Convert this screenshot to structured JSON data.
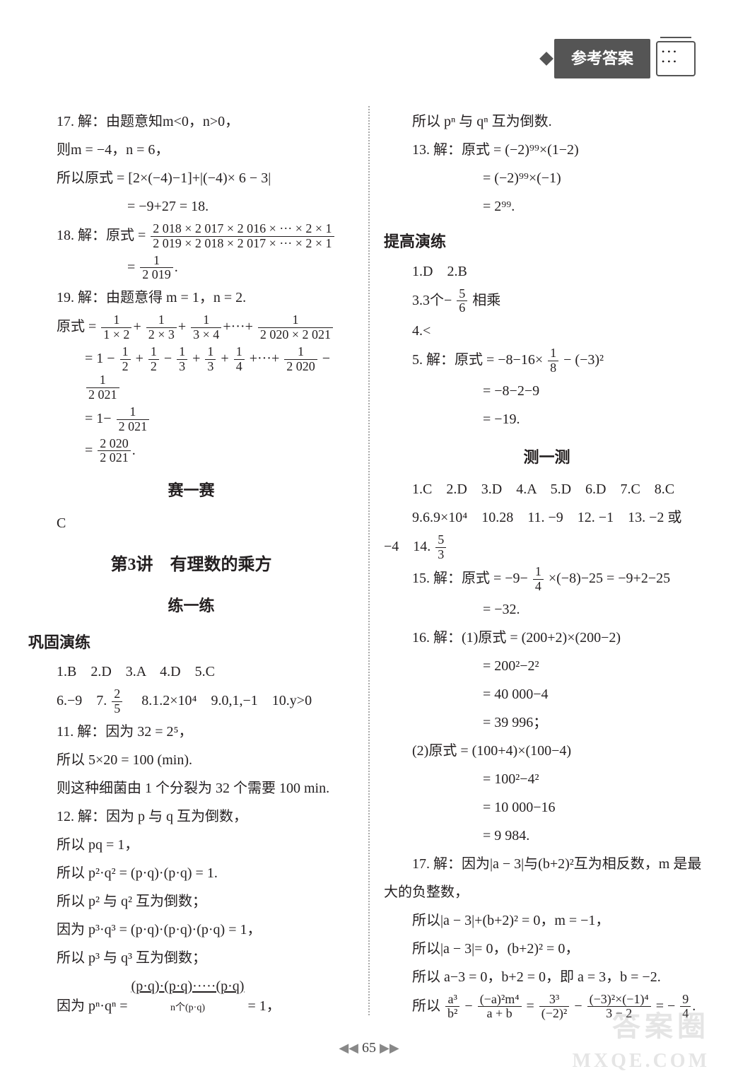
{
  "header": {
    "title": "参考答案"
  },
  "page_number": "65",
  "watermarks": {
    "top": "",
    "bottom1": "答案圈",
    "bottom2": "MXQE.COM"
  },
  "left": {
    "p17_a": "17. 解：由题意知m<0，n>0，",
    "p17_b": "则m = −4，n = 6，",
    "p17_c": "所以原式 = [2×(−4)−1]+|(−4)× 6 − 3|",
    "p17_d": "= −9+27 = 18.",
    "p18_a": "18. 解：原式 =",
    "p18_frac1_num": "2 018 × 2 017 × 2 016 × ··· × 2 × 1",
    "p18_frac1_den": "2 019 × 2 018 × 2 017 × ··· × 2 × 1",
    "p18_b": "=",
    "p18_frac2_num": "1",
    "p18_frac2_den": "2 019",
    "p18_end": ".",
    "p19_a": "19. 解：由题意得 m = 1，n = 2.",
    "p19_b": "原式 =",
    "p19_f1n": "1",
    "p19_f1d": "1 × 2",
    "p19_f2n": "1",
    "p19_f2d": "2 × 3",
    "p19_f3n": "1",
    "p19_f3d": "3 × 4",
    "p19_f4n": "1",
    "p19_f4d": "2 020 × 2 021",
    "p19_c": "= 1 −",
    "p19_g1n": "1",
    "p19_g1d": "2",
    "p19_g2n": "1",
    "p19_g2d": "2",
    "p19_g3n": "1",
    "p19_g3d": "3",
    "p19_g4n": "1",
    "p19_g4d": "3",
    "p19_g5n": "1",
    "p19_g5d": "4",
    "p19_g6n": "1",
    "p19_g6d": "2 020",
    "p19_g7n": "1",
    "p19_g7d": "2 021",
    "p19_d": "= 1−",
    "p19_h1n": "1",
    "p19_h1d": "2 021",
    "p19_e": "=",
    "p19_i1n": "2 020",
    "p19_i1d": "2 021",
    "p19_i_end": ".",
    "sai_title": "赛一赛",
    "sai_ans": "C",
    "sec3_title": "第3讲　有理数的乘方",
    "lian_title": "练一练",
    "gonggu_title": "巩固演练",
    "g_row1": "1.B　2.D　3.A　4.D　5.C",
    "g_row2a": "6.−9　7.",
    "g_row2_fracn": "2",
    "g_row2_fracd": "5",
    "g_row2b": "　8.1.2×10⁴　9.0,1,−1　10.y>0",
    "g11": "11. 解：因为 32 = 2⁵，",
    "g11b": "所以 5×20 = 100 (min).",
    "g11c": "则这种细菌由 1 个分裂为 32 个需要 100 min.",
    "g12a": "12. 解：因为 p 与 q 互为倒数，",
    "g12b": "所以 pq = 1，",
    "g12c": "所以 p²·q² = (p·q)·(p·q) = 1.",
    "g12d": "所以 p² 与 q² 互为倒数；",
    "g12e": "因为 p³·q³ = (p·q)·(p·q)·(p·q) = 1，",
    "g12f": "所以 p³ 与 q³ 互为倒数；",
    "g12g_a": "因为 pⁿ·qⁿ = ",
    "g12g_under": "(p·q)·(p·q)·····(p·q)",
    "g12g_b": " = 1，",
    "g12g_label": "n个(p·q)"
  },
  "right": {
    "r_top": "所以 pⁿ 与 qⁿ 互为倒数.",
    "r13a": "13. 解：原式 = (−2)⁹⁹×(1−2)",
    "r13b": "= (−2)⁹⁹×(−1)",
    "r13c": "= 2⁹⁹.",
    "tigao_title": "提高演练",
    "t_row1": "1.D　2.B",
    "t_row2a": "3.3个−",
    "t_row2_fn": "5",
    "t_row2_fd": "6",
    "t_row2b": "相乘",
    "t_row3": "4.<",
    "t5a": "5. 解：原式 = −8−16×",
    "t5_fn": "1",
    "t5_fd": "8",
    "t5a2": " − (−3)²",
    "t5b": "= −8−2−9",
    "t5c": "= −19.",
    "ce_title": "测一测",
    "c_row1": "1.C　2.D　3.D　4.A　5.D　6.D　7.C　8.C",
    "c_row2": "9.6.9×10⁴　10.28　11. −9　12. −1　13. −2 或",
    "c_row3a": "−4　14.",
    "c_row3_fn": "5",
    "c_row3_fd": "3",
    "c15a": "15. 解：原式 = −9−",
    "c15_fn": "1",
    "c15_fd": "4",
    "c15a2": "×(−8)−25 = −9+2−25",
    "c15b": "= −32.",
    "c16a": "16. 解：(1)原式 = (200+2)×(200−2)",
    "c16b": "= 200²−2²",
    "c16c": "= 40 000−4",
    "c16d": "= 39 996；",
    "c16e": "(2)原式 = (100+4)×(100−4)",
    "c16f": "= 100²−4²",
    "c16g": "= 10 000−16",
    "c16h": "= 9 984.",
    "c17a": "17. 解：因为|a − 3|与(b+2)²互为相反数，m 是最",
    "c17a2": "大的负整数，",
    "c17b": "所以|a − 3|+(b+2)² = 0，m = −1，",
    "c17c": "所以|a − 3|= 0，(b+2)² = 0，",
    "c17d": "所以 a−3 = 0，b+2 = 0，即 a = 3，b = −2.",
    "c17e_a": "所以",
    "c17e_f1n": "a³",
    "c17e_f1d": "b²",
    "c17e_mid1": " − ",
    "c17e_f2n": "(−a)²m⁴",
    "c17e_f2d": "a + b",
    "c17e_mid2": " = ",
    "c17e_f3n": "3³",
    "c17e_f3d": "(−2)²",
    "c17e_mid3": " − ",
    "c17e_f4n": "(−3)²×(−1)⁴",
    "c17e_f4d": "3 − 2",
    "c17e_mid4": " = −",
    "c17e_f5n": "9",
    "c17e_f5d": "4",
    "c17e_end": "."
  }
}
